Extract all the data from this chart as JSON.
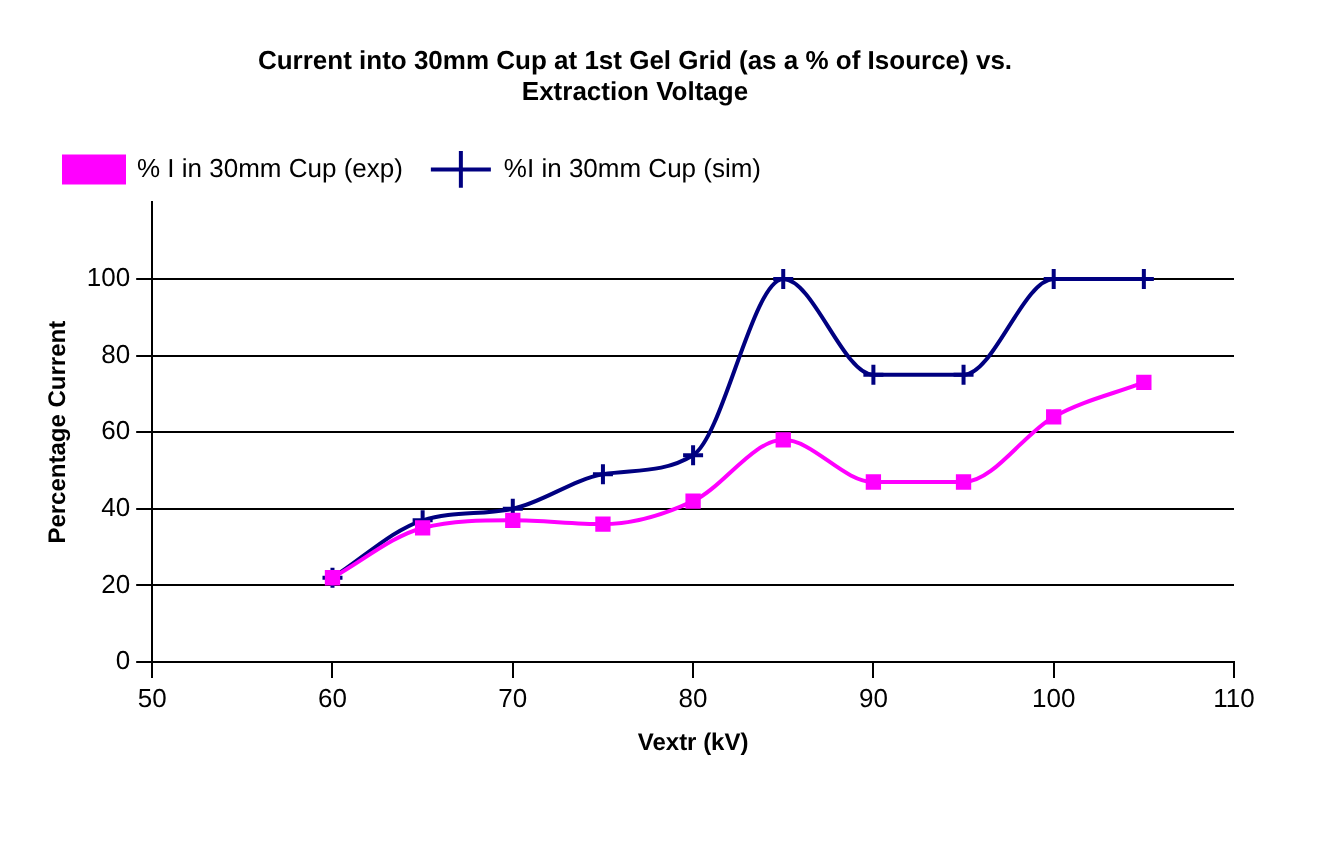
{
  "chart_data": {
    "type": "line",
    "title": [
      "Current into 30mm Cup at 1st Gel Grid (as a % of Isource) vs.",
      "Extraction Voltage"
    ],
    "xlabel": "Vextr (kV)",
    "ylabel": "Percentage Current",
    "x": [
      60,
      65,
      70,
      75,
      80,
      85,
      90,
      95,
      100,
      105
    ],
    "series": [
      {
        "name": "%I in 30mm Cup (sim)",
        "color": "#000080",
        "marker": "cross",
        "values": [
          22,
          37,
          40,
          49,
          54,
          100,
          75,
          75,
          100,
          100
        ]
      },
      {
        "name": "% I in 30mm Cup (exp)",
        "color": "#ff00ff",
        "marker": "square",
        "values": [
          22,
          35,
          37,
          36,
          42,
          58,
          47,
          47,
          64,
          73
        ]
      }
    ],
    "xlim": [
      50,
      110
    ],
    "xticks": [
      50,
      60,
      70,
      80,
      90,
      100,
      110
    ],
    "ylim": [
      0,
      120
    ],
    "yticks": [
      0,
      20,
      40,
      60,
      80,
      100
    ],
    "grid": "y",
    "legend": "top left"
  }
}
